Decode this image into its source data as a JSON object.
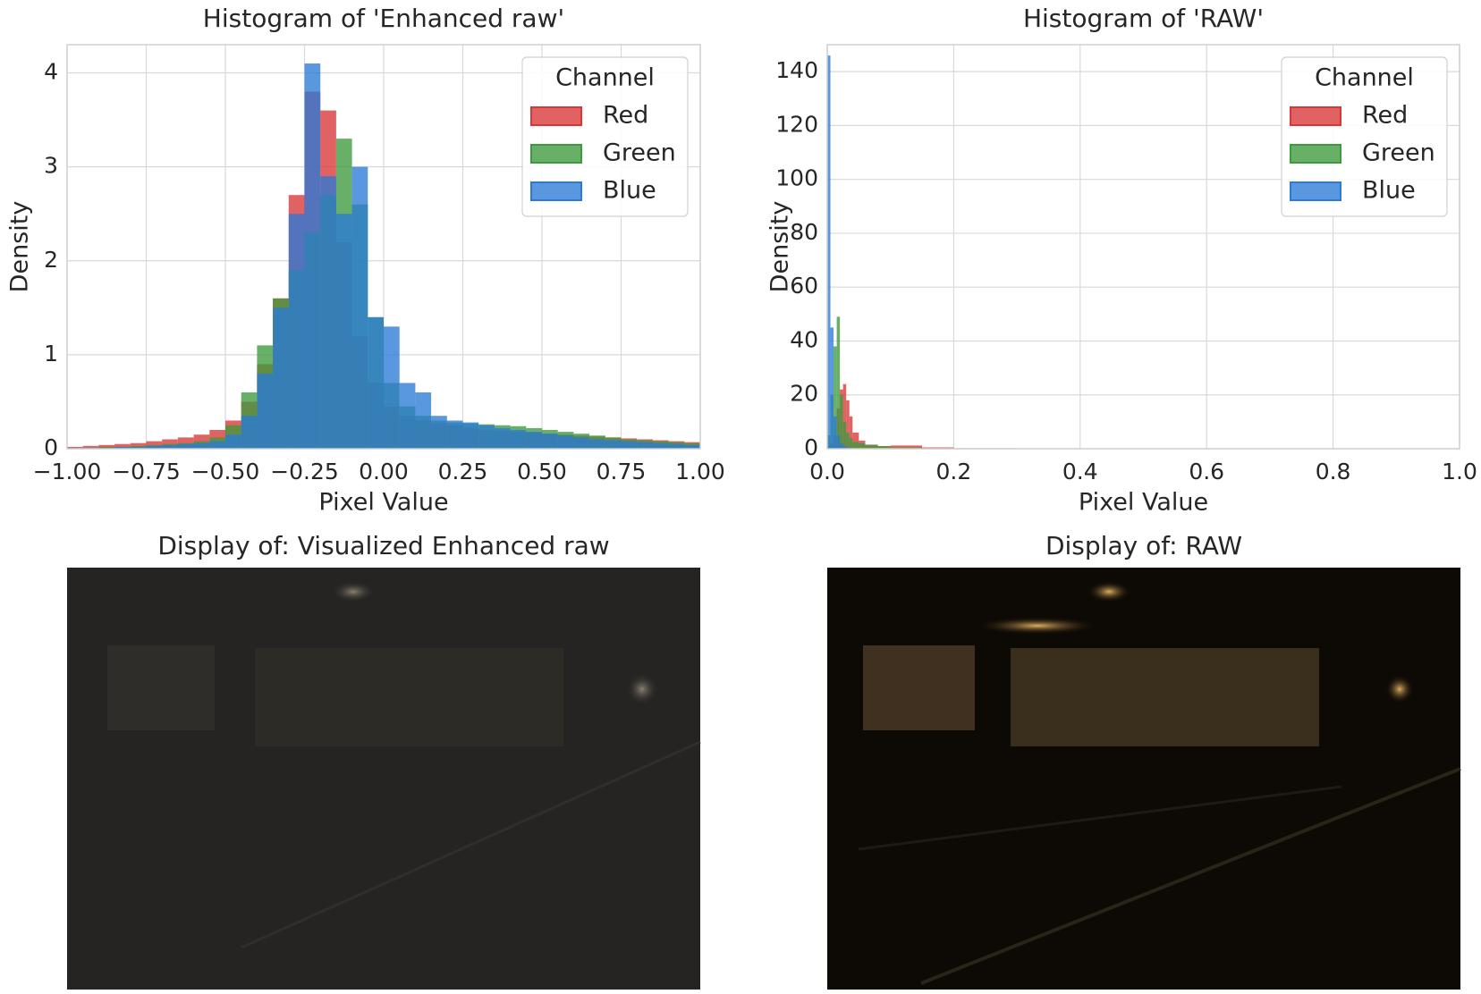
{
  "chart_data": [
    {
      "type": "histogram",
      "title": "Histogram of 'Enhanced raw'",
      "xlabel": "Pixel Value",
      "ylabel": "Density",
      "bins": [
        -1.0,
        -0.95,
        -0.9,
        -0.85,
        -0.8,
        -0.75,
        -0.7,
        -0.65,
        -0.6,
        -0.55,
        -0.5,
        -0.45,
        -0.4,
        -0.35,
        -0.3,
        -0.25,
        -0.2,
        -0.15,
        -0.1,
        -0.05,
        0.0,
        0.05,
        0.1,
        0.15,
        0.2,
        0.25,
        0.3,
        0.35,
        0.4,
        0.45,
        0.5,
        0.55,
        0.6,
        0.65,
        0.7,
        0.75,
        0.8,
        0.85,
        0.9,
        0.95,
        1.0
      ],
      "series": [
        {
          "name": "Red",
          "color": "#d93636",
          "values": [
            0.02,
            0.03,
            0.04,
            0.05,
            0.06,
            0.08,
            0.1,
            0.12,
            0.15,
            0.2,
            0.3,
            0.5,
            0.9,
            1.6,
            2.7,
            3.8,
            3.6,
            2.2,
            1.2,
            0.7,
            0.45,
            0.35,
            0.3,
            0.27,
            0.25,
            0.22,
            0.2,
            0.19,
            0.18,
            0.17,
            0.16,
            0.15,
            0.14,
            0.13,
            0.12,
            0.11,
            0.1,
            0.09,
            0.08,
            0.07
          ]
        },
        {
          "name": "Green",
          "color": "#3d9a3d",
          "values": [
            0.01,
            0.01,
            0.02,
            0.02,
            0.03,
            0.04,
            0.05,
            0.06,
            0.08,
            0.12,
            0.25,
            0.6,
            1.1,
            1.6,
            1.9,
            2.3,
            2.7,
            3.3,
            2.6,
            1.4,
            0.7,
            0.45,
            0.35,
            0.3,
            0.28,
            0.27,
            0.26,
            0.25,
            0.24,
            0.22,
            0.2,
            0.18,
            0.16,
            0.14,
            0.12,
            0.1,
            0.09,
            0.08,
            0.07,
            0.06
          ]
        },
        {
          "name": "Blue",
          "color": "#2a7ad6",
          "values": [
            0.01,
            0.01,
            0.01,
            0.02,
            0.02,
            0.03,
            0.04,
            0.05,
            0.06,
            0.08,
            0.15,
            0.35,
            0.8,
            1.5,
            2.5,
            4.1,
            2.9,
            2.5,
            3.0,
            1.4,
            1.3,
            0.7,
            0.6,
            0.35,
            0.3,
            0.28,
            0.25,
            0.22,
            0.2,
            0.18,
            0.16,
            0.14,
            0.12,
            0.1,
            0.09,
            0.08,
            0.07,
            0.06,
            0.05,
            0.04
          ]
        }
      ],
      "xlim": [
        -1.0,
        1.0
      ],
      "ylim": [
        0,
        4.3
      ],
      "xticks": [
        {
          "value": -1.0,
          "label": "−1.00"
        },
        {
          "value": -0.75,
          "label": "−0.75"
        },
        {
          "value": -0.5,
          "label": "−0.50"
        },
        {
          "value": -0.25,
          "label": "−0.25"
        },
        {
          "value": 0,
          "label": "0.00"
        },
        {
          "value": 0.25,
          "label": "0.25"
        },
        {
          "value": 0.5,
          "label": "0.50"
        },
        {
          "value": 0.75,
          "label": "0.75"
        },
        {
          "value": 1.0,
          "label": "1.00"
        }
      ],
      "yticks": [
        0,
        1,
        2,
        3,
        4
      ],
      "grid": true,
      "legend_title": "Channel",
      "legend": "upper right"
    },
    {
      "type": "histogram",
      "title": "Histogram of 'RAW'",
      "xlabel": "Pixel Value",
      "ylabel": "Density",
      "bins": [
        0,
        0.005,
        0.01,
        0.015,
        0.02,
        0.025,
        0.03,
        0.035,
        0.04,
        0.05,
        0.06,
        0.08,
        0.1,
        0.15,
        0.2,
        0.3,
        1.0
      ],
      "series": [
        {
          "name": "Red",
          "color": "#d93636",
          "values": [
            1,
            2,
            5,
            15,
            22,
            24,
            18,
            12,
            6,
            3,
            1.5,
            1,
            1.2,
            0.5,
            0.2,
            0.05
          ]
        },
        {
          "name": "Green",
          "color": "#3d9a3d",
          "values": [
            5,
            20,
            38,
            49,
            20,
            10,
            6,
            4,
            2.5,
            2,
            1.5,
            1,
            0.5,
            0.2,
            0.1,
            0
          ]
        },
        {
          "name": "Blue",
          "color": "#2a7ad6",
          "values": [
            146,
            45,
            12,
            5,
            2,
            1,
            0.5,
            0.3,
            0.2,
            0.1,
            0.05,
            0.02,
            0.01,
            0,
            0,
            0
          ]
        }
      ],
      "xlim": [
        0,
        1.0
      ],
      "ylim": [
        0,
        150
      ],
      "xticks": [
        {
          "value": 0,
          "label": "0.0"
        },
        {
          "value": 0.2,
          "label": "0.2"
        },
        {
          "value": 0.4,
          "label": "0.4"
        },
        {
          "value": 0.6,
          "label": "0.6"
        },
        {
          "value": 0.8,
          "label": "0.8"
        },
        {
          "value": 1.0,
          "label": "1.0"
        }
      ],
      "yticks": [
        0,
        20,
        40,
        60,
        80,
        100,
        120,
        140
      ],
      "grid": true,
      "legend_title": "Channel",
      "legend": "upper right"
    }
  ],
  "images": [
    {
      "title": "Display of: Visualized Enhanced raw"
    },
    {
      "title": "Display of: RAW"
    }
  ]
}
